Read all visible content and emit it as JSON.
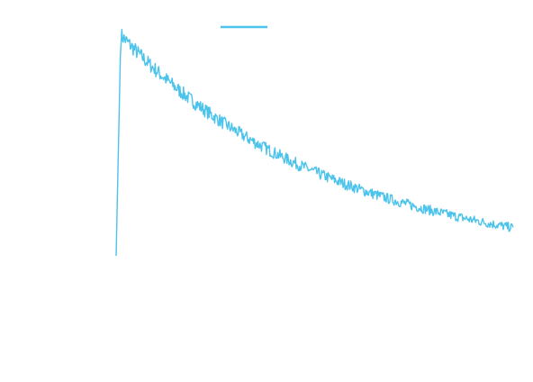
{
  "chart_data": {
    "type": "line",
    "title": "",
    "xlabel": "",
    "ylabel": "",
    "grid": false,
    "legend": {
      "placement": "top-center",
      "entries": [
        {
          "label": "",
          "color": "#4cc3ea"
        }
      ]
    },
    "shape": {
      "baseline": 0,
      "peak": 1,
      "rise_fraction": 0.012,
      "decay_rate": 2.0,
      "noise_amplitude": 0.035,
      "points": 560
    },
    "series": [
      {
        "color": "#4cc3ea"
      }
    ]
  }
}
